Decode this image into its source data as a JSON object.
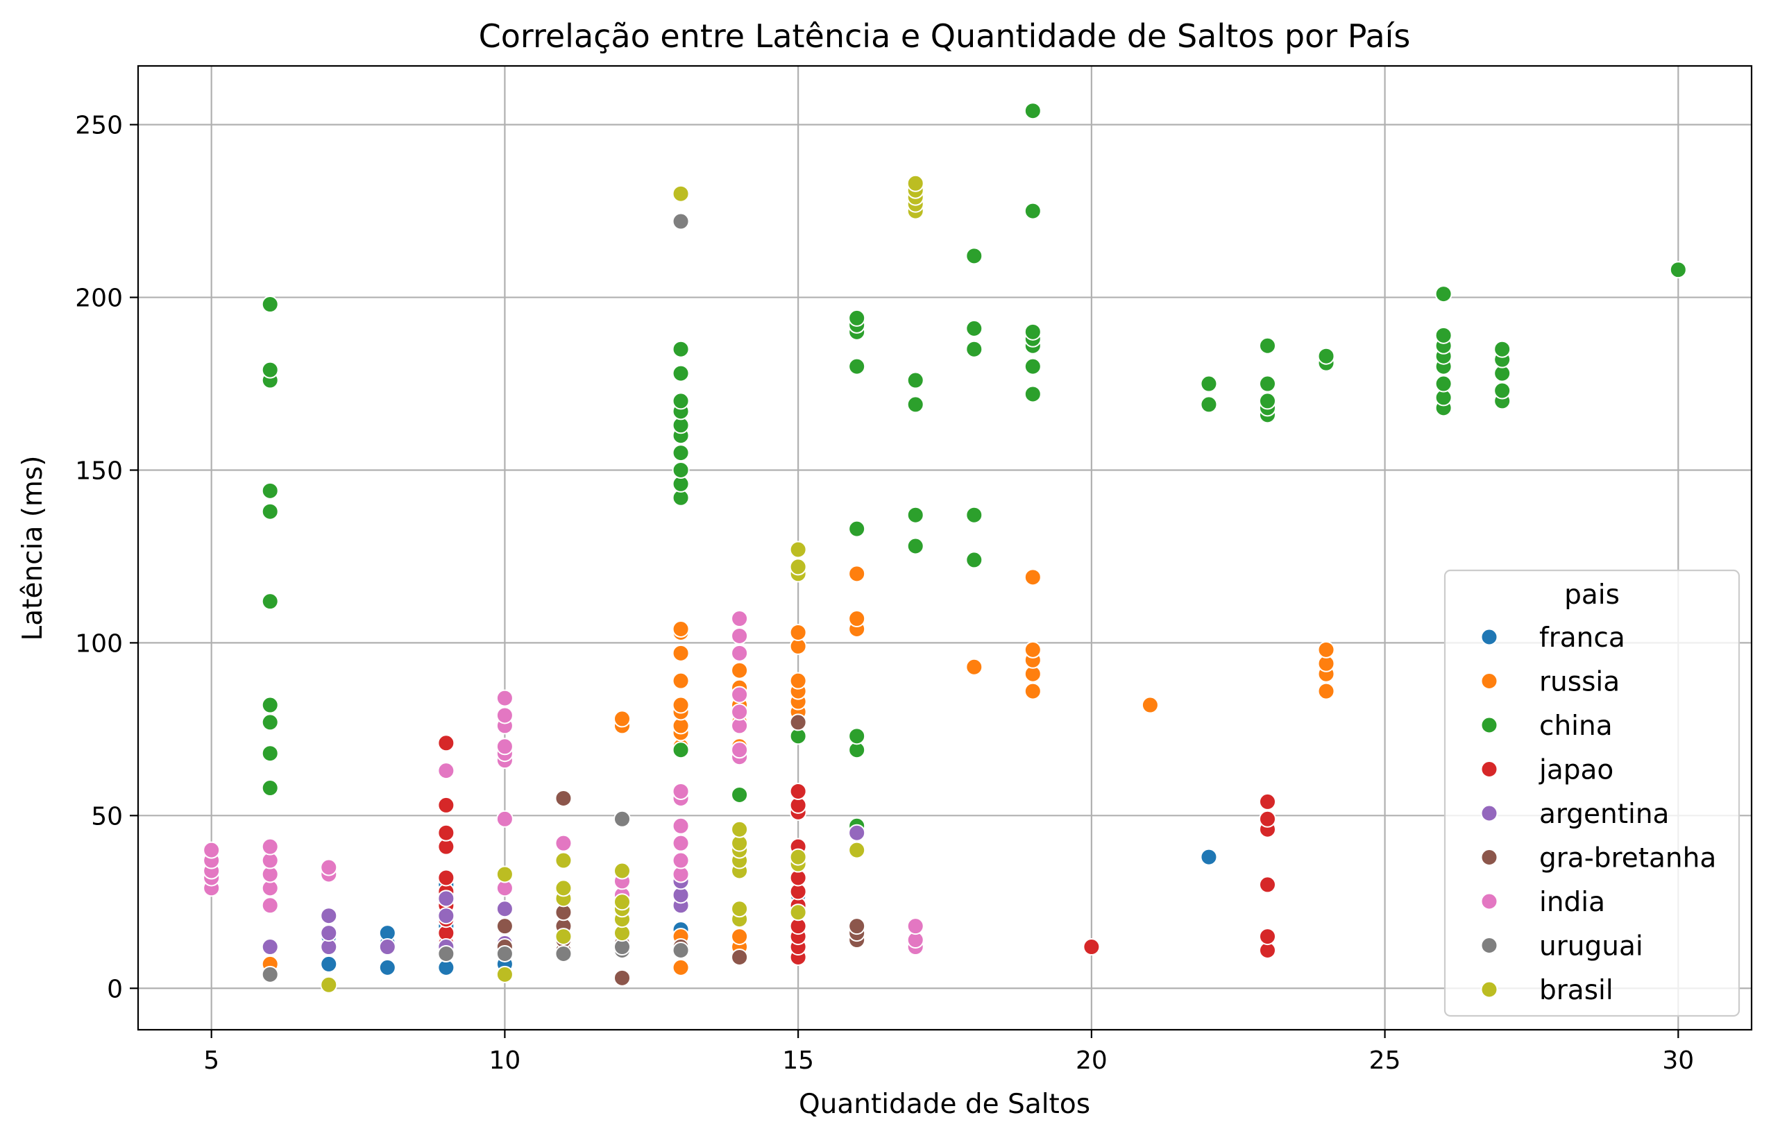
{
  "chart_data": {
    "type": "scatter",
    "title": "Correlação entre Latência e Quantidade de Saltos por País",
    "xlabel": "Quantidade de Saltos",
    "ylabel": "Latência (ms)",
    "xlim": [
      3.75,
      31.25
    ],
    "ylim": [
      -12,
      267
    ],
    "xticks": [
      5,
      10,
      15,
      20,
      25,
      30
    ],
    "yticks": [
      0,
      50,
      100,
      150,
      200,
      250
    ],
    "grid": true,
    "legend": {
      "title": "pais",
      "position": "lower-right"
    },
    "series": [
      {
        "name": "franca",
        "color": "#1f77b4",
        "points": [
          [
            7,
            7
          ],
          [
            7,
            15
          ],
          [
            8,
            6
          ],
          [
            8,
            13
          ],
          [
            8,
            16
          ],
          [
            9,
            6
          ],
          [
            9,
            15
          ],
          [
            9,
            18
          ],
          [
            9,
            30
          ],
          [
            10,
            7
          ],
          [
            13,
            17
          ],
          [
            15,
            22
          ],
          [
            15,
            27
          ],
          [
            22,
            38
          ]
        ]
      },
      {
        "name": "russia",
        "color": "#ff7f0e",
        "points": [
          [
            6,
            7
          ],
          [
            6,
            12
          ],
          [
            11,
            13
          ],
          [
            12,
            76
          ],
          [
            12,
            78
          ],
          [
            13,
            6
          ],
          [
            13,
            12
          ],
          [
            13,
            15
          ],
          [
            13,
            70
          ],
          [
            13,
            74
          ],
          [
            13,
            76
          ],
          [
            13,
            80
          ],
          [
            13,
            82
          ],
          [
            13,
            89
          ],
          [
            13,
            97
          ],
          [
            13,
            103
          ],
          [
            13,
            104
          ],
          [
            14,
            12
          ],
          [
            14,
            15
          ],
          [
            14,
            70
          ],
          [
            14,
            77
          ],
          [
            14,
            82
          ],
          [
            14,
            87
          ],
          [
            14,
            92
          ],
          [
            14,
            97
          ],
          [
            15,
            28
          ],
          [
            15,
            80
          ],
          [
            15,
            83
          ],
          [
            15,
            86
          ],
          [
            15,
            89
          ],
          [
            15,
            99
          ],
          [
            15,
            103
          ],
          [
            16,
            104
          ],
          [
            16,
            107
          ],
          [
            16,
            120
          ],
          [
            18,
            93
          ],
          [
            19,
            86
          ],
          [
            19,
            91
          ],
          [
            19,
            95
          ],
          [
            19,
            98
          ],
          [
            19,
            119
          ],
          [
            21,
            82
          ],
          [
            24,
            86
          ],
          [
            24,
            91
          ],
          [
            24,
            94
          ],
          [
            24,
            98
          ]
        ]
      },
      {
        "name": "china",
        "color": "#2ca02c",
        "points": [
          [
            6,
            58
          ],
          [
            6,
            68
          ],
          [
            6,
            77
          ],
          [
            6,
            82
          ],
          [
            6,
            112
          ],
          [
            6,
            138
          ],
          [
            6,
            144
          ],
          [
            6,
            176
          ],
          [
            6,
            179
          ],
          [
            6,
            198
          ],
          [
            13,
            69
          ],
          [
            13,
            142
          ],
          [
            13,
            146
          ],
          [
            13,
            150
          ],
          [
            13,
            155
          ],
          [
            13,
            160
          ],
          [
            13,
            163
          ],
          [
            13,
            167
          ],
          [
            13,
            170
          ],
          [
            13,
            178
          ],
          [
            13,
            185
          ],
          [
            14,
            56
          ],
          [
            15,
            73
          ],
          [
            16,
            47
          ],
          [
            16,
            69
          ],
          [
            16,
            73
          ],
          [
            16,
            133
          ],
          [
            16,
            180
          ],
          [
            16,
            190
          ],
          [
            16,
            192
          ],
          [
            16,
            194
          ],
          [
            17,
            128
          ],
          [
            17,
            137
          ],
          [
            17,
            169
          ],
          [
            17,
            176
          ],
          [
            18,
            124
          ],
          [
            18,
            137
          ],
          [
            18,
            185
          ],
          [
            18,
            191
          ],
          [
            18,
            212
          ],
          [
            19,
            172
          ],
          [
            19,
            180
          ],
          [
            19,
            186
          ],
          [
            19,
            188
          ],
          [
            19,
            190
          ],
          [
            19,
            225
          ],
          [
            19,
            254
          ],
          [
            22,
            169
          ],
          [
            22,
            175
          ],
          [
            23,
            166
          ],
          [
            23,
            168
          ],
          [
            23,
            170
          ],
          [
            23,
            175
          ],
          [
            23,
            186
          ],
          [
            24,
            181
          ],
          [
            24,
            183
          ],
          [
            26,
            168
          ],
          [
            26,
            171
          ],
          [
            26,
            175
          ],
          [
            26,
            180
          ],
          [
            26,
            183
          ],
          [
            26,
            186
          ],
          [
            26,
            189
          ],
          [
            26,
            201
          ],
          [
            27,
            170
          ],
          [
            27,
            173
          ],
          [
            27,
            178
          ],
          [
            27,
            182
          ],
          [
            27,
            185
          ],
          [
            30,
            208
          ]
        ]
      },
      {
        "name": "japao",
        "color": "#d62728",
        "points": [
          [
            9,
            10
          ],
          [
            9,
            13
          ],
          [
            9,
            16
          ],
          [
            9,
            20
          ],
          [
            9,
            24
          ],
          [
            9,
            28
          ],
          [
            9,
            32
          ],
          [
            9,
            41
          ],
          [
            9,
            45
          ],
          [
            9,
            53
          ],
          [
            9,
            71
          ],
          [
            15,
            9
          ],
          [
            15,
            12
          ],
          [
            15,
            15
          ],
          [
            15,
            18
          ],
          [
            15,
            24
          ],
          [
            15,
            28
          ],
          [
            15,
            32
          ],
          [
            15,
            36
          ],
          [
            15,
            41
          ],
          [
            15,
            51
          ],
          [
            15,
            53
          ],
          [
            15,
            57
          ],
          [
            20,
            12
          ],
          [
            23,
            11
          ],
          [
            23,
            15
          ],
          [
            23,
            30
          ],
          [
            23,
            46
          ],
          [
            23,
            49
          ],
          [
            23,
            54
          ]
        ]
      },
      {
        "name": "argentina",
        "color": "#9467bd",
        "points": [
          [
            6,
            12
          ],
          [
            7,
            12
          ],
          [
            7,
            16
          ],
          [
            7,
            21
          ],
          [
            8,
            12
          ],
          [
            9,
            12
          ],
          [
            9,
            21
          ],
          [
            9,
            26
          ],
          [
            10,
            13
          ],
          [
            10,
            23
          ],
          [
            11,
            27
          ],
          [
            13,
            24
          ],
          [
            13,
            27
          ],
          [
            13,
            31
          ],
          [
            16,
            45
          ]
        ]
      },
      {
        "name": "gra-bretanha",
        "color": "#8c564b",
        "points": [
          [
            10,
            12
          ],
          [
            10,
            18
          ],
          [
            11,
            11
          ],
          [
            11,
            14
          ],
          [
            11,
            18
          ],
          [
            11,
            22
          ],
          [
            11,
            55
          ],
          [
            12,
            3
          ],
          [
            12,
            13
          ],
          [
            13,
            12
          ],
          [
            14,
            9
          ],
          [
            15,
            77
          ],
          [
            16,
            14
          ],
          [
            16,
            16
          ],
          [
            16,
            18
          ]
        ]
      },
      {
        "name": "india",
        "color": "#e377c2",
        "points": [
          [
            5,
            29
          ],
          [
            5,
            32
          ],
          [
            5,
            34
          ],
          [
            5,
            37
          ],
          [
            5,
            40
          ],
          [
            6,
            24
          ],
          [
            6,
            29
          ],
          [
            6,
            33
          ],
          [
            6,
            37
          ],
          [
            6,
            41
          ],
          [
            7,
            33
          ],
          [
            7,
            35
          ],
          [
            9,
            63
          ],
          [
            10,
            29
          ],
          [
            10,
            49
          ],
          [
            10,
            66
          ],
          [
            10,
            68
          ],
          [
            10,
            70
          ],
          [
            10,
            76
          ],
          [
            10,
            79
          ],
          [
            10,
            84
          ],
          [
            11,
            42
          ],
          [
            12,
            27
          ],
          [
            12,
            31
          ],
          [
            13,
            33
          ],
          [
            13,
            37
          ],
          [
            13,
            42
          ],
          [
            13,
            47
          ],
          [
            13,
            55
          ],
          [
            13,
            57
          ],
          [
            14,
            67
          ],
          [
            14,
            69
          ],
          [
            14,
            76
          ],
          [
            14,
            80
          ],
          [
            14,
            85
          ],
          [
            14,
            97
          ],
          [
            14,
            102
          ],
          [
            14,
            107
          ],
          [
            17,
            12
          ],
          [
            17,
            14
          ],
          [
            17,
            18
          ]
        ]
      },
      {
        "name": "uruguai",
        "color": "#7f7f7f",
        "points": [
          [
            6,
            4
          ],
          [
            9,
            10
          ],
          [
            10,
            10
          ],
          [
            11,
            10
          ],
          [
            12,
            11
          ],
          [
            12,
            12
          ],
          [
            12,
            49
          ],
          [
            13,
            11
          ],
          [
            13,
            222
          ]
        ]
      },
      {
        "name": "brasil",
        "color": "#bcbd22",
        "points": [
          [
            7,
            1
          ],
          [
            10,
            4
          ],
          [
            10,
            33
          ],
          [
            11,
            15
          ],
          [
            11,
            26
          ],
          [
            11,
            29
          ],
          [
            11,
            37
          ],
          [
            12,
            16
          ],
          [
            12,
            20
          ],
          [
            12,
            23
          ],
          [
            12,
            25
          ],
          [
            12,
            34
          ],
          [
            13,
            230
          ],
          [
            14,
            20
          ],
          [
            14,
            23
          ],
          [
            14,
            34
          ],
          [
            14,
            37
          ],
          [
            14,
            40
          ],
          [
            14,
            42
          ],
          [
            14,
            46
          ],
          [
            15,
            22
          ],
          [
            15,
            36
          ],
          [
            15,
            38
          ],
          [
            15,
            120
          ],
          [
            15,
            122
          ],
          [
            15,
            127
          ],
          [
            16,
            40
          ],
          [
            17,
            225
          ],
          [
            17,
            227
          ],
          [
            17,
            229
          ],
          [
            17,
            231
          ],
          [
            17,
            233
          ]
        ]
      }
    ]
  }
}
